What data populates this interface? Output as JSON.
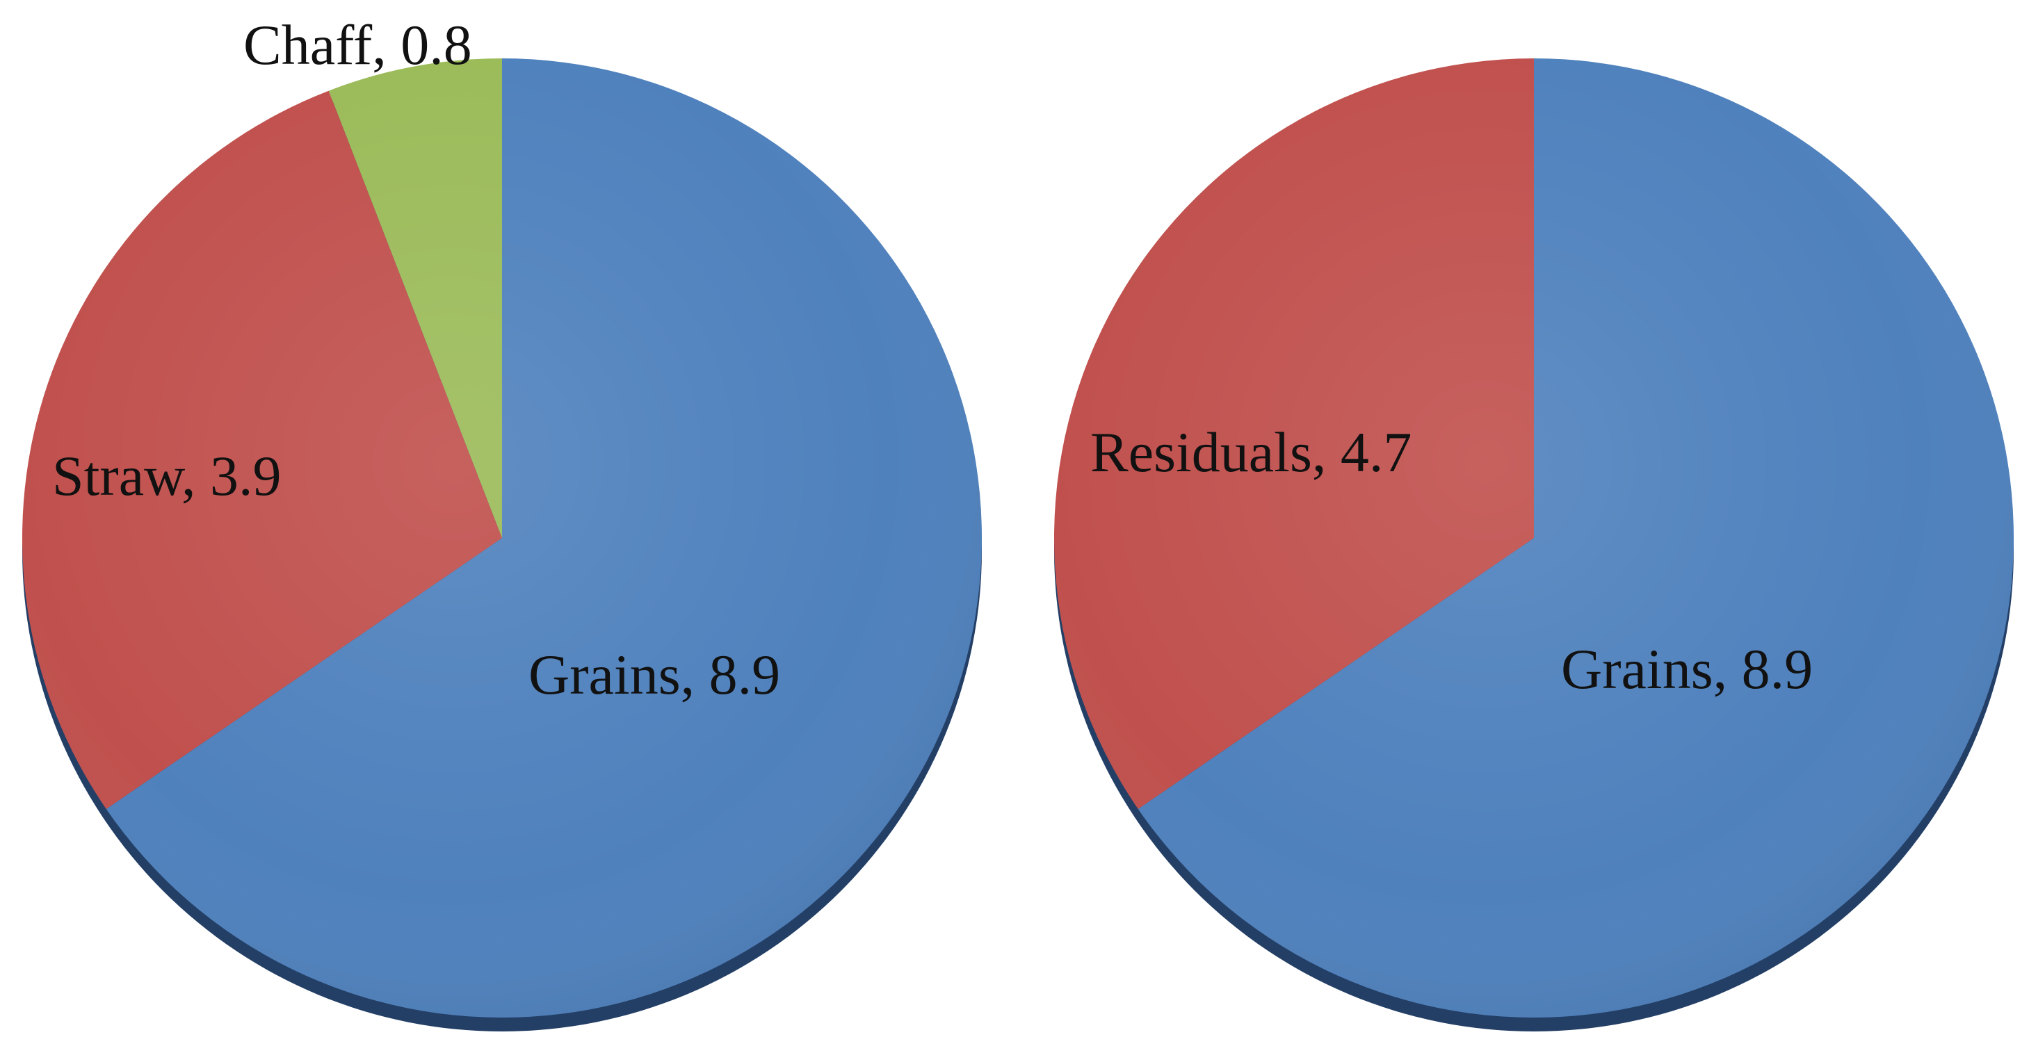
{
  "chart_data": [
    {
      "type": "pie",
      "slices": [
        {
          "label": "Grains, 8.9",
          "name": "Grains",
          "value": 8.9,
          "color": "#4F81BD"
        },
        {
          "label": "Straw, 3.9",
          "name": "Straw",
          "value": 3.9,
          "color": "#C0504D"
        },
        {
          "label": "Chaff, 0.8",
          "name": "Chaff",
          "value": 0.8,
          "color": "#9BBB59"
        }
      ]
    },
    {
      "type": "pie",
      "slices": [
        {
          "label": "Grains, 8.9",
          "name": "Grains",
          "value": 8.9,
          "color": "#4F81BD"
        },
        {
          "label": "Residuals, 4.7",
          "name": "Residuals",
          "value": 4.7,
          "color": "#C0504D"
        }
      ]
    }
  ]
}
